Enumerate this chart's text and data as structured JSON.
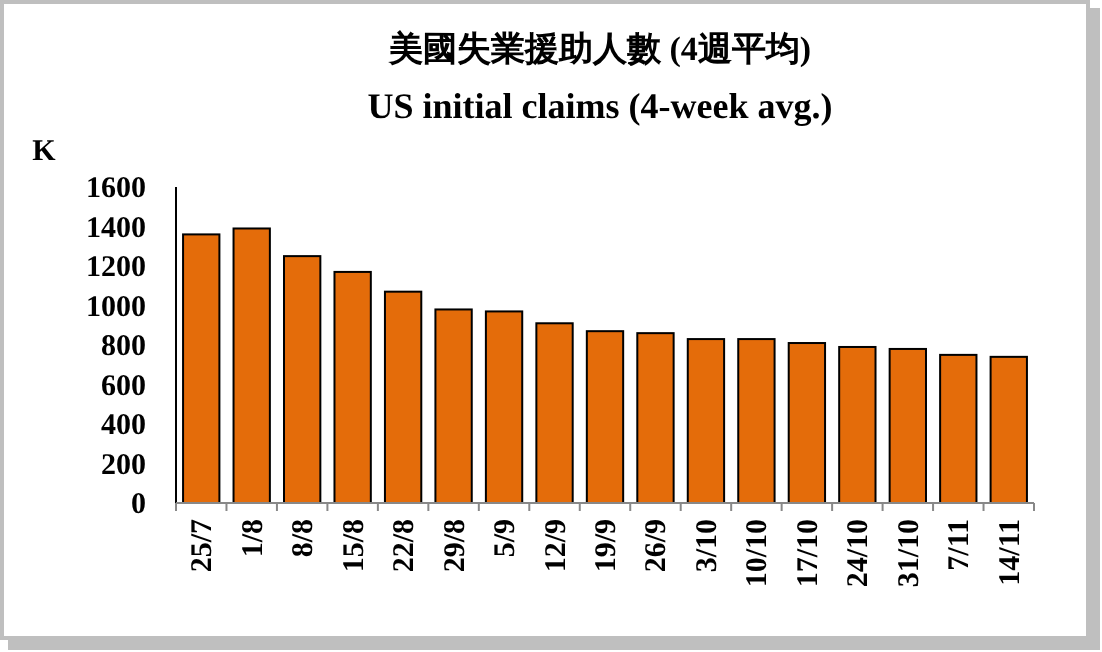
{
  "chart_data": {
    "type": "bar",
    "title": "美國失業援助人數 (4週平均)",
    "subtitle": "US initial claims (4-week avg.)",
    "ylabel": "K",
    "categories": [
      "25/7",
      "1/8",
      "8/8",
      "15/8",
      "22/8",
      "29/8",
      "5/9",
      "12/9",
      "19/9",
      "26/9",
      "3/10",
      "10/10",
      "17/10",
      "24/10",
      "31/10",
      "7/11",
      "14/11"
    ],
    "values": [
      1360,
      1390,
      1250,
      1170,
      1070,
      980,
      970,
      910,
      870,
      860,
      830,
      830,
      810,
      790,
      780,
      750,
      740
    ],
    "color": "#e46c0a",
    "ylim": [
      0,
      1600
    ],
    "yticks": [
      0,
      200,
      400,
      600,
      800,
      1000,
      1200,
      1400,
      1600
    ]
  }
}
